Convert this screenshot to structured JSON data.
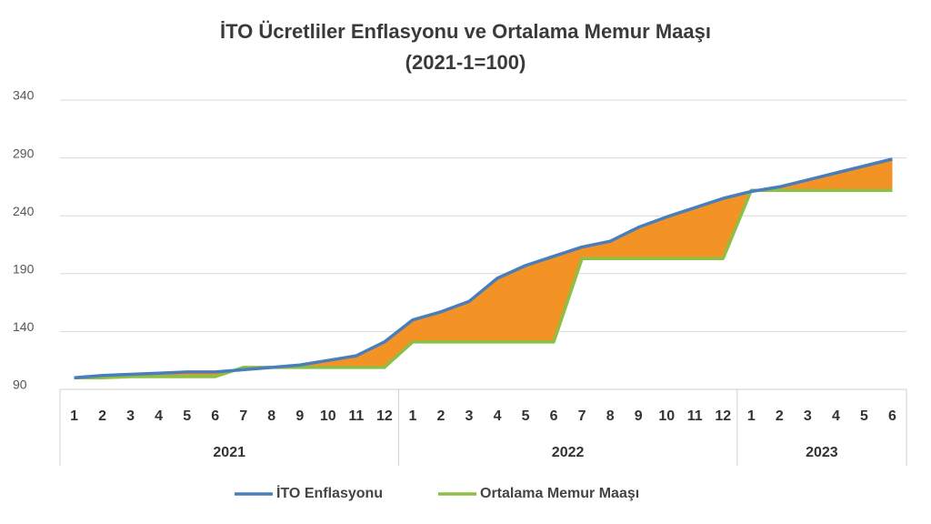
{
  "chart_data": {
    "type": "line",
    "title": "İTO Ücretliler Enflasyonu ve Ortalama Memur Maaşı",
    "subtitle": "(2021-1=100)",
    "categories": [
      "1",
      "2",
      "3",
      "4",
      "5",
      "6",
      "7",
      "8",
      "9",
      "10",
      "11",
      "12",
      "1",
      "2",
      "3",
      "4",
      "5",
      "6",
      "7",
      "8",
      "9",
      "10",
      "11",
      "12",
      "1",
      "2",
      "3",
      "4",
      "5",
      "6"
    ],
    "groups": [
      {
        "label": "2021",
        "size": 12
      },
      {
        "label": "2022",
        "size": 12
      },
      {
        "label": "2023",
        "size": 6
      }
    ],
    "series": [
      {
        "name": "İTO Enflasyonu",
        "color": "#4a7ebb",
        "values": [
          100,
          102,
          103,
          104,
          105,
          105,
          107,
          109,
          111,
          115,
          119,
          131,
          150,
          157,
          166,
          186,
          197,
          205,
          213,
          218,
          230,
          239,
          247,
          255,
          261,
          265,
          271,
          277,
          283,
          289
        ]
      },
      {
        "name": "Ortalama Memur Maaşı",
        "color": "#8cbf44",
        "values": [
          100,
          100,
          101,
          101,
          101,
          101,
          109,
          109,
          109,
          109,
          109,
          109,
          131,
          131,
          131,
          131,
          131,
          131,
          203,
          203,
          203,
          203,
          203,
          203,
          262,
          262,
          262,
          262,
          262,
          262
        ]
      }
    ],
    "fill_between_color": "#f39325",
    "ylim": [
      90,
      340
    ],
    "yticks": [
      90,
      140,
      190,
      240,
      290,
      340
    ],
    "grid": true,
    "legend": "bottom"
  }
}
